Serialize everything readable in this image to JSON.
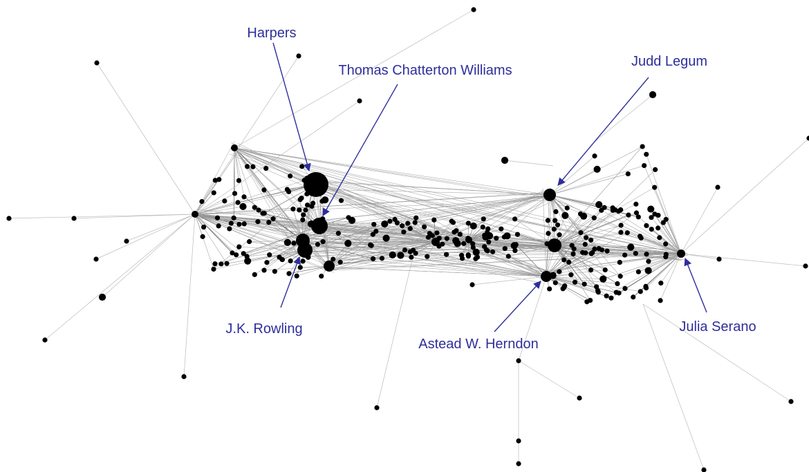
{
  "annotations": [
    {
      "label": "Harpers"
    },
    {
      "label": "Thomas Chatterton Williams"
    },
    {
      "label": "Judd Legum"
    },
    {
      "label": "J.K. Rowling"
    },
    {
      "label": "Astead W. Herndon"
    },
    {
      "label": "Julia Serano"
    }
  ]
}
